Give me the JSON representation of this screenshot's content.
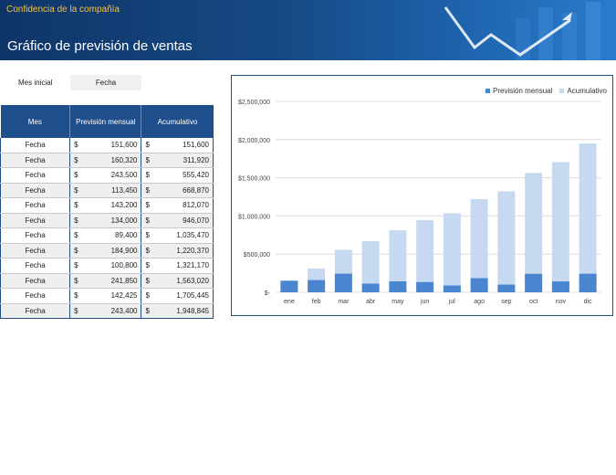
{
  "header": {
    "confidential": "Confidencia de la compañía",
    "title": "Gráfico de previsión de ventas"
  },
  "start": {
    "label": "Mes inicial",
    "value": "Fecha"
  },
  "table": {
    "headers": [
      "Mes",
      "Previsión mensual",
      "Acumulativo"
    ],
    "currency": "$",
    "rows": [
      {
        "month": "Fecha",
        "monthly": "151,600",
        "cumulative": "151,600"
      },
      {
        "month": "Fecha",
        "monthly": "160,320",
        "cumulative": "311,920"
      },
      {
        "month": "Fecha",
        "monthly": "243,500",
        "cumulative": "555,420"
      },
      {
        "month": "Fecha",
        "monthly": "113,450",
        "cumulative": "668,870"
      },
      {
        "month": "Fecha",
        "monthly": "143,200",
        "cumulative": "812,070"
      },
      {
        "month": "Fecha",
        "monthly": "134,000",
        "cumulative": "946,070"
      },
      {
        "month": "Fecha",
        "monthly": "89,400",
        "cumulative": "1,035,470"
      },
      {
        "month": "Fecha",
        "monthly": "184,900",
        "cumulative": "1,220,370"
      },
      {
        "month": "Fecha",
        "monthly": "100,800",
        "cumulative": "1,321,170"
      },
      {
        "month": "Fecha",
        "monthly": "241,850",
        "cumulative": "1,563,020"
      },
      {
        "month": "Fecha",
        "monthly": "142,425",
        "cumulative": "1,705,445"
      },
      {
        "month": "Fecha",
        "monthly": "243,400",
        "cumulative": "1,948,845"
      }
    ]
  },
  "colors": {
    "header": "#1f4e8c",
    "monthly": "#4a86d0",
    "cumulative": "#c6d9f1"
  },
  "chart_data": {
    "type": "bar",
    "categories": [
      "ene",
      "feb",
      "mar",
      "abr",
      "may",
      "jun",
      "jul",
      "ago",
      "sep",
      "oct",
      "nov",
      "dic"
    ],
    "series": [
      {
        "name": "Previsión mensual",
        "values": [
          151600,
          160320,
          243500,
          113450,
          143200,
          134000,
          89400,
          184900,
          100800,
          241850,
          142425,
          243400
        ]
      },
      {
        "name": "Acumulativo",
        "values": [
          151600,
          311920,
          555420,
          668870,
          812070,
          946070,
          1035470,
          1220370,
          1321170,
          1563020,
          1705445,
          1948845
        ]
      }
    ],
    "ylim": [
      0,
      2500000
    ],
    "yticks": [
      0,
      500000,
      1000000,
      1500000,
      2000000,
      2500000
    ],
    "ytick_labels": [
      "$-",
      "$500,000",
      "$1,000,000",
      "$1,500,000",
      "$2,000,000",
      "$2,500,000"
    ],
    "legend": "top-right",
    "grid": true
  }
}
